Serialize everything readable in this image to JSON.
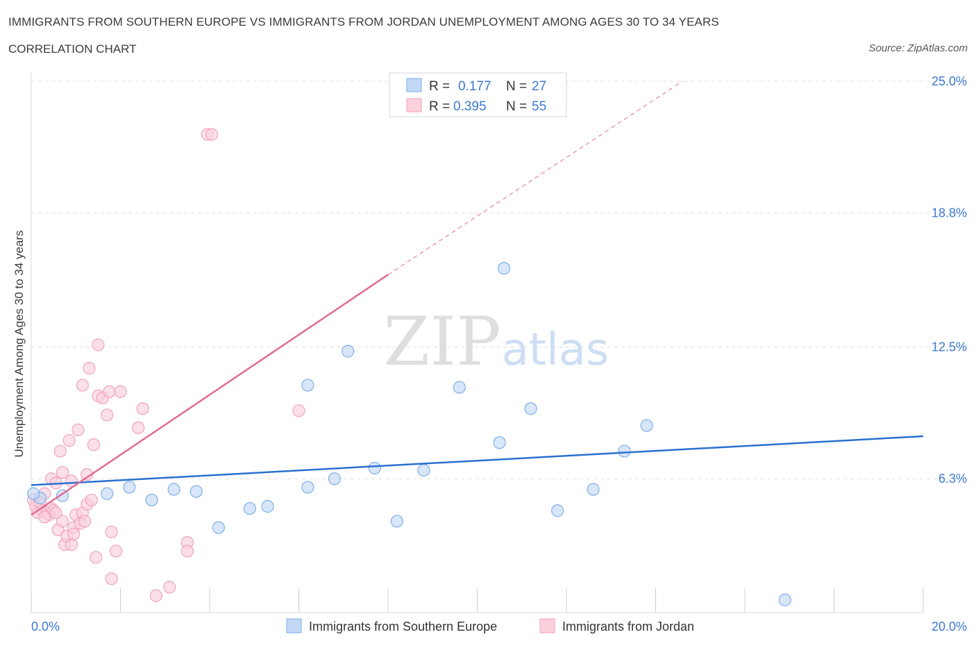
{
  "title": "IMMIGRANTS FROM SOUTHERN EUROPE VS IMMIGRANTS FROM JORDAN UNEMPLOYMENT AMONG AGES 30 TO 34 YEARS",
  "subtitle": "CORRELATION CHART",
  "source": "Source: ZipAtlas.com",
  "watermark": {
    "zip": "ZIP",
    "atlas": "atlas"
  },
  "colors": {
    "blue": "#7eaee8",
    "blue_line": "#2970d0",
    "pink": "#f0a2bb",
    "pink_line": "#e06a92",
    "tick_label": "#3d78d1"
  },
  "legend": {
    "items": [
      {
        "r_label": "R =",
        "r_value": "0.177",
        "n_label": "N =",
        "n_value": "27"
      },
      {
        "r_label": "R =",
        "r_value": "0.395",
        "n_label": "N =",
        "n_value": "55"
      }
    ]
  },
  "chart_data": {
    "type": "scatter",
    "xlabel": "",
    "ylabel": "Unemployment Among Ages 30 to 34 years",
    "xlim": [
      0,
      20
    ],
    "ylim": [
      0,
      25
    ],
    "x_tick_labels": [
      "0.0%",
      "20.0%"
    ],
    "y_ticks": [
      6.3,
      12.5,
      18.8,
      25.0
    ],
    "y_tick_labels": [
      "6.3%",
      "12.5%",
      "18.8%",
      "25.0%"
    ],
    "series": [
      {
        "name": "Immigrants from Southern Europe",
        "color": "#7eaee8",
        "points": [
          [
            0.2,
            5.4
          ],
          [
            0.7,
            5.5
          ],
          [
            1.7,
            5.6
          ],
          [
            2.2,
            5.9
          ],
          [
            2.7,
            5.3
          ],
          [
            3.2,
            5.8
          ],
          [
            3.7,
            5.7
          ],
          [
            4.2,
            4.0
          ],
          [
            4.9,
            4.9
          ],
          [
            5.3,
            5.0
          ],
          [
            6.2,
            10.7
          ],
          [
            6.2,
            5.9
          ],
          [
            6.8,
            6.3
          ],
          [
            7.1,
            12.3
          ],
          [
            7.7,
            6.8
          ],
          [
            8.2,
            4.3
          ],
          [
            8.8,
            6.7
          ],
          [
            9.6,
            10.6
          ],
          [
            10.5,
            8.0
          ],
          [
            10.6,
            16.2
          ],
          [
            11.2,
            9.6
          ],
          [
            11.8,
            4.8
          ],
          [
            12.6,
            5.8
          ],
          [
            13.3,
            7.6
          ],
          [
            13.8,
            8.8
          ],
          [
            16.9,
            0.6
          ],
          [
            0.05,
            5.6
          ]
        ],
        "trend": {
          "x": [
            0,
            20
          ],
          "y": [
            6.0,
            8.3
          ]
        }
      },
      {
        "name": "Immigrants from Jordan",
        "color": "#f0a2bb",
        "points": [
          [
            0.05,
            5.3
          ],
          [
            0.1,
            5.0
          ],
          [
            0.15,
            4.7
          ],
          [
            0.2,
            5.2
          ],
          [
            0.25,
            4.8
          ],
          [
            0.3,
            5.6
          ],
          [
            0.35,
            4.7
          ],
          [
            0.4,
            4.6
          ],
          [
            0.45,
            4.9
          ],
          [
            0.5,
            4.8
          ],
          [
            0.45,
            6.3
          ],
          [
            0.55,
            6.1
          ],
          [
            0.6,
            3.9
          ],
          [
            0.7,
            4.3
          ],
          [
            0.65,
            7.6
          ],
          [
            0.7,
            6.6
          ],
          [
            0.75,
            3.2
          ],
          [
            0.8,
            3.6
          ],
          [
            0.85,
            8.1
          ],
          [
            0.9,
            6.2
          ],
          [
            0.9,
            3.2
          ],
          [
            0.95,
            4.0
          ],
          [
            0.95,
            3.7
          ],
          [
            1.0,
            4.6
          ],
          [
            1.05,
            8.6
          ],
          [
            1.1,
            4.2
          ],
          [
            1.15,
            4.7
          ],
          [
            1.15,
            10.7
          ],
          [
            1.2,
            4.3
          ],
          [
            1.25,
            6.5
          ],
          [
            1.25,
            5.1
          ],
          [
            1.3,
            11.5
          ],
          [
            1.35,
            5.3
          ],
          [
            1.4,
            7.9
          ],
          [
            1.45,
            2.6
          ],
          [
            1.5,
            12.6
          ],
          [
            1.5,
            10.2
          ],
          [
            1.6,
            10.1
          ],
          [
            1.7,
            9.3
          ],
          [
            1.75,
            10.4
          ],
          [
            1.8,
            3.8
          ],
          [
            1.8,
            1.6
          ],
          [
            1.9,
            2.9
          ],
          [
            2.0,
            10.4
          ],
          [
            2.4,
            8.7
          ],
          [
            2.5,
            9.6
          ],
          [
            2.8,
            0.8
          ],
          [
            3.1,
            1.2
          ],
          [
            3.5,
            3.3
          ],
          [
            3.5,
            2.9
          ],
          [
            3.95,
            22.5
          ],
          [
            4.05,
            22.5
          ],
          [
            6.0,
            9.5
          ],
          [
            0.3,
            4.5
          ],
          [
            0.55,
            4.7
          ]
        ],
        "trend": {
          "x": [
            0,
            8.0
          ],
          "y": [
            4.6,
            15.9
          ]
        },
        "trend_extension": {
          "x": [
            8.0,
            14.6
          ],
          "y": [
            15.9,
            25.0
          ]
        }
      }
    ]
  },
  "bottom_legend": [
    {
      "label": "Immigrants from Southern Europe"
    },
    {
      "label": "Immigrants from Jordan"
    }
  ]
}
